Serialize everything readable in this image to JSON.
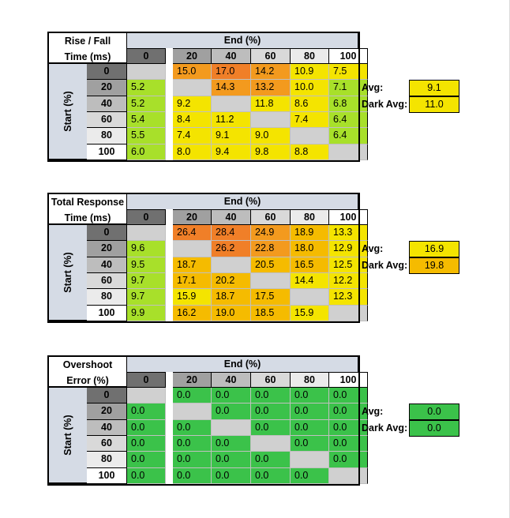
{
  "headers": {
    "end": "End (%)",
    "start": "Start (%)",
    "cols": [
      "0",
      "20",
      "40",
      "60",
      "80",
      "100"
    ],
    "rows": [
      "0",
      "20",
      "40",
      "60",
      "80",
      "100"
    ],
    "avg_label": "Avg:",
    "dark_avg_label": "Dark Avg:"
  },
  "colors": {
    "header_blue": "#d5dbe5",
    "diag_gray": "#d0d0d0",
    "green": "#3bc24a",
    "lime": "#a8e02a",
    "yellow": "#f4e400",
    "amber": "#f5bb00",
    "orange": "#f39a1e",
    "dark_orange": "#f07f28"
  },
  "tables": [
    {
      "title_line1": "Rise / Fall",
      "title_line2": "Time (ms)",
      "avg": "9.1",
      "dark_avg": "11.0",
      "values": [
        [
          "",
          "15.0",
          "17.0",
          "14.2",
          "10.9",
          "7.5"
        ],
        [
          "5.2",
          "",
          "14.3",
          "13.2",
          "10.0",
          "7.1"
        ],
        [
          "5.2",
          "9.2",
          "",
          "11.8",
          "8.6",
          "6.8"
        ],
        [
          "5.4",
          "8.4",
          "11.2",
          "",
          "7.4",
          "6.4"
        ],
        [
          "5.5",
          "7.4",
          "9.1",
          "9.0",
          "",
          "6.4"
        ],
        [
          "6.0",
          "8.0",
          "9.4",
          "9.8",
          "8.8",
          ""
        ]
      ]
    },
    {
      "title_line1": "Total Response",
      "title_line2": "Time (ms)",
      "avg": "16.9",
      "dark_avg": "19.8",
      "values": [
        [
          "",
          "26.4",
          "28.4",
          "24.9",
          "18.9",
          "13.3"
        ],
        [
          "9.6",
          "",
          "26.2",
          "22.8",
          "18.0",
          "12.9"
        ],
        [
          "9.5",
          "18.7",
          "",
          "20.5",
          "16.5",
          "12.5"
        ],
        [
          "9.7",
          "17.1",
          "20.2",
          "",
          "14.4",
          "12.2"
        ],
        [
          "9.7",
          "15.9",
          "18.7",
          "17.5",
          "",
          "12.3"
        ],
        [
          "9.9",
          "16.2",
          "19.0",
          "18.5",
          "15.9",
          ""
        ]
      ]
    },
    {
      "title_line1": "Overshoot",
      "title_line2": "Error (%)",
      "avg": "0.0",
      "dark_avg": "0.0",
      "values": [
        [
          "",
          "0.0",
          "0.0",
          "0.0",
          "0.0",
          "0.0"
        ],
        [
          "0.0",
          "",
          "0.0",
          "0.0",
          "0.0",
          "0.0"
        ],
        [
          "0.0",
          "0.0",
          "",
          "0.0",
          "0.0",
          "0.0"
        ],
        [
          "0.0",
          "0.0",
          "0.0",
          "",
          "0.0",
          "0.0"
        ],
        [
          "0.0",
          "0.0",
          "0.0",
          "0.0",
          "",
          "0.0"
        ],
        [
          "0.0",
          "0.0",
          "0.0",
          "0.0",
          "0.0",
          ""
        ]
      ]
    }
  ]
}
